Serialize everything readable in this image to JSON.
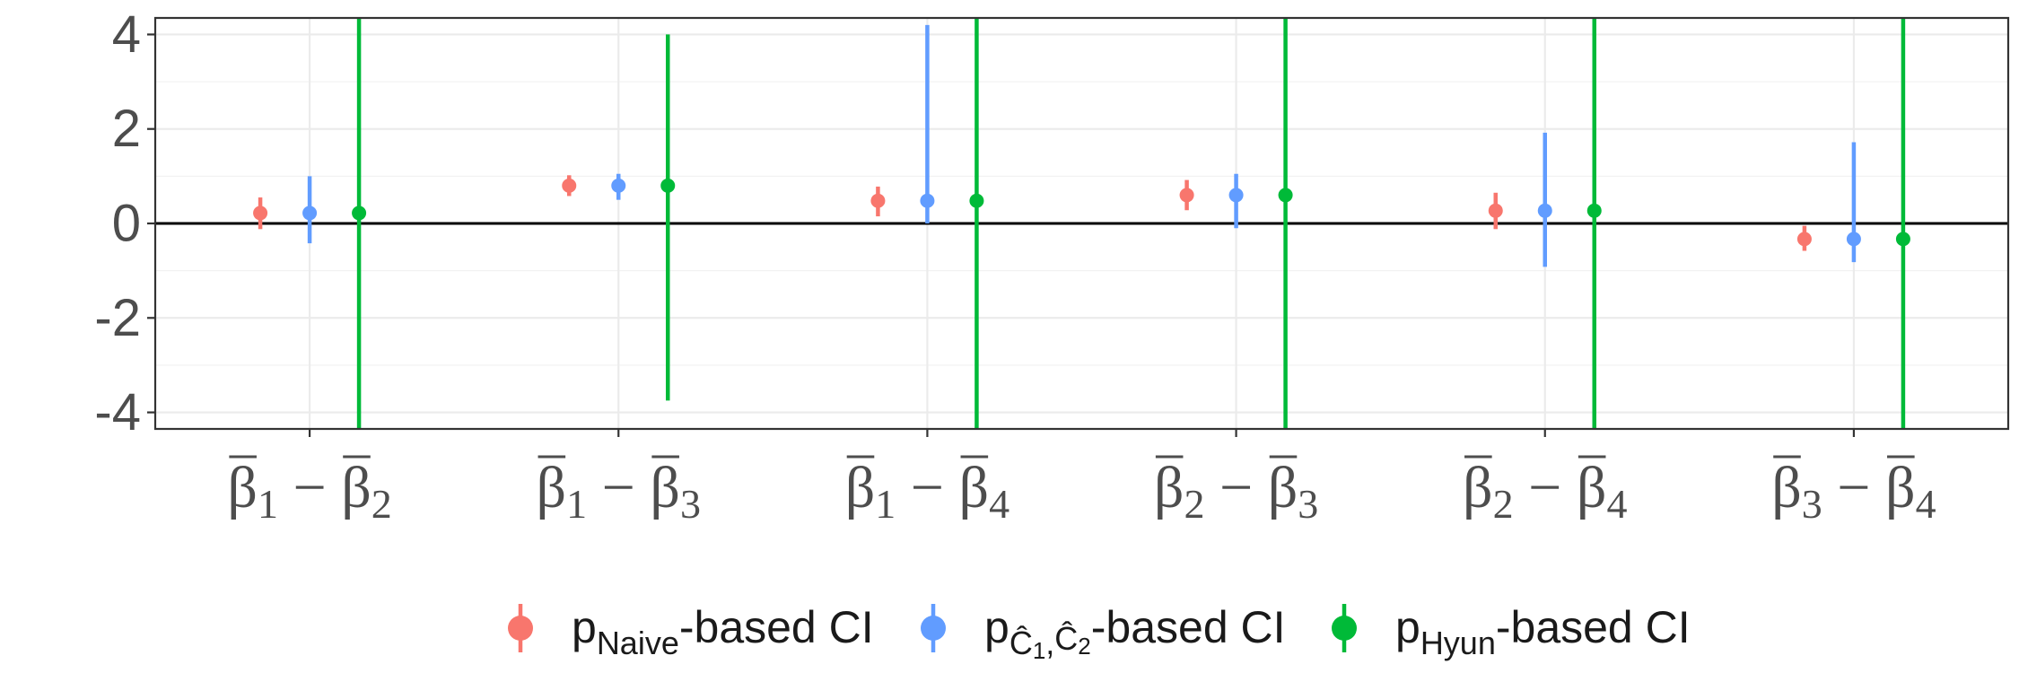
{
  "chart_data": {
    "type": "scatter",
    "subtype": "point-range",
    "categories": [
      {
        "base": "β",
        "a": "1",
        "b": "2"
      },
      {
        "base": "β",
        "a": "1",
        "b": "3"
      },
      {
        "base": "β",
        "a": "1",
        "b": "4"
      },
      {
        "base": "β",
        "a": "2",
        "b": "3"
      },
      {
        "base": "β",
        "a": "2",
        "b": "4"
      },
      {
        "base": "β",
        "a": "3",
        "b": "4"
      }
    ],
    "minus": "−",
    "yticks": [
      4,
      2,
      0,
      -2,
      -4
    ],
    "ytick_labels": [
      "4",
      "2",
      "0",
      "-2",
      "-4"
    ],
    "ylim": [
      -4.35,
      4.35
    ],
    "grid": true,
    "reference_line": 0,
    "legend_position": "bottom",
    "series": [
      {
        "name": "Naive",
        "legend": {
          "prefix": "p",
          "sub": "Naive",
          "suffix": "-based CI"
        },
        "color": "#F8766D",
        "estimate": [
          0.22,
          0.8,
          0.48,
          0.6,
          0.27,
          -0.33
        ],
        "lower": [
          -0.12,
          0.58,
          0.15,
          0.28,
          -0.12,
          -0.58
        ],
        "upper": [
          0.55,
          1.02,
          0.78,
          0.92,
          0.65,
          -0.05
        ]
      },
      {
        "name": "C1C2",
        "legend": {
          "prefix": "p",
          "sub_parts": [
            "Ĉ",
            "1",
            ",",
            "Ĉ",
            "2"
          ],
          "suffix": "-based CI"
        },
        "color": "#619CFF",
        "estimate": [
          0.22,
          0.8,
          0.48,
          0.6,
          0.27,
          -0.33
        ],
        "lower": [
          -0.42,
          0.5,
          0.0,
          -0.1,
          -0.92,
          -0.82
        ],
        "upper": [
          1.0,
          1.05,
          4.2,
          1.05,
          1.92,
          1.72
        ]
      },
      {
        "name": "Hyun",
        "legend": {
          "prefix": "p",
          "sub": "Hyun",
          "suffix": "-based CI"
        },
        "color": "#00BA38",
        "estimate": [
          0.22,
          0.8,
          0.48,
          0.6,
          0.27,
          -0.33
        ],
        "lower": [
          -4.35,
          -3.75,
          -4.35,
          -4.35,
          -4.35,
          -4.35
        ],
        "upper": [
          4.35,
          4.0,
          4.35,
          4.35,
          4.35,
          4.35
        ]
      }
    ]
  }
}
